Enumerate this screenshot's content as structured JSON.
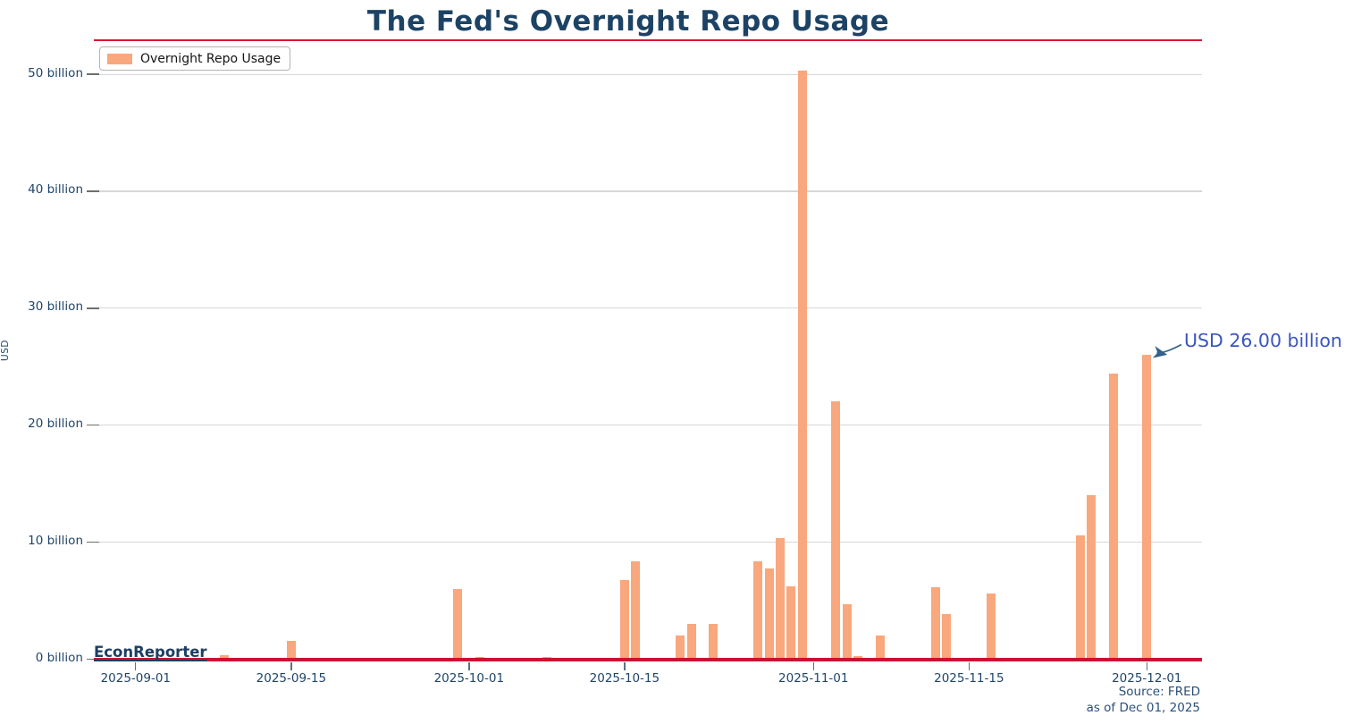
{
  "title": "The Fed's Overnight Repo Usage",
  "legend": {
    "label": "Overnight Repo Usage"
  },
  "y_axis": {
    "title": "USD",
    "ticks": [
      {
        "value": 50,
        "label": "50 billion"
      },
      {
        "value": 40,
        "label": "40 billion"
      },
      {
        "value": 30,
        "label": "30 billion"
      },
      {
        "value": 20,
        "label": "20 billion"
      },
      {
        "value": 10,
        "label": "10 billion"
      },
      {
        "value": 0,
        "label": "0 billion"
      }
    ]
  },
  "x_axis": {
    "ticks": [
      {
        "date": "2025-09-01",
        "label": "2025-09-01"
      },
      {
        "date": "2025-09-15",
        "label": "2025-09-15"
      },
      {
        "date": "2025-10-01",
        "label": "2025-10-01"
      },
      {
        "date": "2025-10-15",
        "label": "2025-10-15"
      },
      {
        "date": "2025-11-01",
        "label": "2025-11-01"
      },
      {
        "date": "2025-11-15",
        "label": "2025-11-15"
      },
      {
        "date": "2025-12-01",
        "label": "2025-12-01"
      }
    ]
  },
  "annotation": {
    "text": "USD 26.00 billion",
    "target_date": "2025-12-01",
    "target_value": 26.0
  },
  "watermark": "EconReporter",
  "footer": {
    "source": "Source: FRED",
    "as_of": "as of Dec 01, 2025"
  },
  "colors": {
    "bar": "#f9a77c",
    "title_text": "#1c4365",
    "axis_text": "#1f456a",
    "zero_line": "#cb1232",
    "title_rule": "#dc1430",
    "gridline": "#d7d7d7",
    "annotation_text": "#3b55c0",
    "annotation_arrow": "#31618c"
  },
  "chart_data": {
    "type": "bar",
    "title": "The Fed's Overnight Repo Usage",
    "xlabel": "",
    "ylabel": "USD",
    "unit": "billions of USD",
    "ylim": [
      0,
      52
    ],
    "y_ticks": [
      0,
      10,
      20,
      30,
      40,
      50
    ],
    "x_range": [
      "2025-09-01",
      "2025-12-01"
    ],
    "x_tick_dates": [
      "2025-09-01",
      "2025-09-15",
      "2025-10-01",
      "2025-10-15",
      "2025-11-01",
      "2025-11-15",
      "2025-12-01"
    ],
    "grid": "horizontal",
    "legend_position": "upper-left",
    "series": [
      {
        "name": "Overnight Repo Usage",
        "color": "#f9a77c",
        "points": [
          {
            "date": "2025-09-09",
            "value": 0.3
          },
          {
            "date": "2025-09-15",
            "value": 1.55
          },
          {
            "date": "2025-09-30",
            "value": 6.0
          },
          {
            "date": "2025-10-02",
            "value": 0.2
          },
          {
            "date": "2025-10-08",
            "value": 0.2
          },
          {
            "date": "2025-10-15",
            "value": 6.75
          },
          {
            "date": "2025-10-16",
            "value": 8.35
          },
          {
            "date": "2025-10-20",
            "value": 2.0
          },
          {
            "date": "2025-10-21",
            "value": 3.0
          },
          {
            "date": "2025-10-23",
            "value": 3.0
          },
          {
            "date": "2025-10-27",
            "value": 8.35
          },
          {
            "date": "2025-10-28",
            "value": 7.75
          },
          {
            "date": "2025-10-29",
            "value": 10.35
          },
          {
            "date": "2025-10-30",
            "value": 6.2
          },
          {
            "date": "2025-10-31",
            "value": 50.35
          },
          {
            "date": "2025-11-03",
            "value": 22.0
          },
          {
            "date": "2025-11-04",
            "value": 4.7
          },
          {
            "date": "2025-11-05",
            "value": 0.25
          },
          {
            "date": "2025-11-07",
            "value": 2.0
          },
          {
            "date": "2025-11-12",
            "value": 6.1
          },
          {
            "date": "2025-11-13",
            "value": 3.85
          },
          {
            "date": "2025-11-17",
            "value": 5.6
          },
          {
            "date": "2025-11-25",
            "value": 10.55
          },
          {
            "date": "2025-11-26",
            "value": 14.0
          },
          {
            "date": "2025-11-28",
            "value": 24.4
          },
          {
            "date": "2025-12-01",
            "value": 26.0
          }
        ]
      }
    ],
    "annotations": [
      {
        "text": "USD 26.00 billion",
        "target_date": "2025-12-01",
        "target_value": 26.0
      }
    ]
  }
}
